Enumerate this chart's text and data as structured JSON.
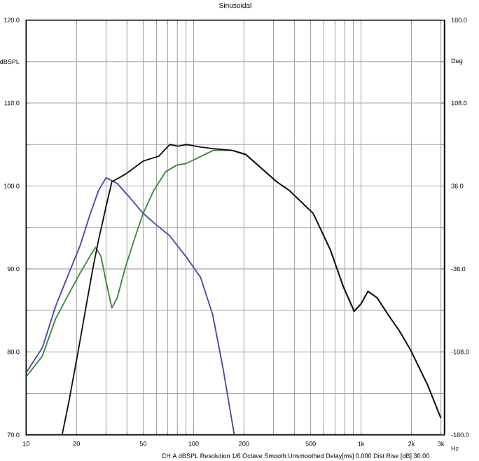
{
  "chart_data": {
    "type": "line",
    "title": "Sinusoidal",
    "xlabel": "Hz",
    "log": "x",
    "grid": true,
    "xlim": [
      10,
      3150
    ],
    "ylim": [
      70,
      120
    ],
    "y2lim": [
      -180,
      180
    ],
    "xticks": [
      {
        "value": 10,
        "label": "10"
      },
      {
        "value": 20,
        "label": "20"
      },
      {
        "value": 30,
        "label": null
      },
      {
        "value": 40,
        "label": null
      },
      {
        "value": 50,
        "label": "50"
      },
      {
        "value": 60,
        "label": null
      },
      {
        "value": 70,
        "label": null
      },
      {
        "value": 80,
        "label": null
      },
      {
        "value": 90,
        "label": null
      },
      {
        "value": 100,
        "label": "100"
      },
      {
        "value": 200,
        "label": "200"
      },
      {
        "value": 300,
        "label": null
      },
      {
        "value": 400,
        "label": null
      },
      {
        "value": 500,
        "label": "500"
      },
      {
        "value": 600,
        "label": null
      },
      {
        "value": 700,
        "label": null
      },
      {
        "value": 800,
        "label": null
      },
      {
        "value": 900,
        "label": null
      },
      {
        "value": 1000,
        "label": "1k"
      },
      {
        "value": 2000,
        "label": "2k"
      },
      {
        "value": 3000,
        "label": "3k"
      }
    ],
    "yticks": [
      {
        "value": 70,
        "label": "70.0"
      },
      {
        "value": 75,
        "label": null
      },
      {
        "value": 80,
        "label": "80.0"
      },
      {
        "value": 85,
        "label": null
      },
      {
        "value": 90,
        "label": "90.0"
      },
      {
        "value": 95,
        "label": null
      },
      {
        "value": 100,
        "label": "100.0"
      },
      {
        "value": 105,
        "label": null
      },
      {
        "value": 110,
        "label": "110.0"
      },
      {
        "value": 115,
        "label": "dBSPL"
      },
      {
        "value": 120,
        "label": "120.0"
      }
    ],
    "y2ticks": [
      {
        "value": -180,
        "label": "-180.0"
      },
      {
        "value": -108,
        "label": "-108.0"
      },
      {
        "value": -36,
        "label": "-36.0"
      },
      {
        "value": 36,
        "label": "36.0"
      },
      {
        "value": 108,
        "label": "108.0"
      },
      {
        "value": 144,
        "label": "Deg"
      },
      {
        "value": 180,
        "label": "180.0"
      }
    ],
    "series": [
      {
        "color": "#4a4aa8",
        "x": [
          10,
          12.5,
          15,
          18,
          21,
          24,
          27,
          30,
          35,
          42,
          50,
          60,
          72,
          90,
          110,
          130,
          150,
          175
        ],
        "values": [
          77.5,
          80.5,
          85.5,
          89.5,
          92.8,
          96.5,
          99.4,
          101,
          100.3,
          98.5,
          96.7,
          95.3,
          94,
          91.5,
          89,
          84.5,
          78,
          70
        ]
      },
      {
        "color": "#3a8a3a",
        "x": [
          10,
          12.5,
          15,
          18,
          21,
          24,
          26,
          28,
          30,
          32.5,
          35,
          39,
          45,
          50,
          58,
          68,
          79,
          90,
          104,
          131,
          170,
          205,
          314,
          376,
          518,
          656,
          786,
          910,
          1000,
          1100,
          1250,
          1450,
          1700,
          1980,
          2500,
          3000
        ],
        "values": [
          77,
          79.5,
          84,
          87,
          89.5,
          91.5,
          92.6,
          91.5,
          88.5,
          85.3,
          86.5,
          90.1,
          94,
          96.7,
          99.5,
          101.7,
          102.5,
          102.7,
          103.3,
          104.3,
          104.3,
          103.8,
          100.5,
          99.4,
          96.7,
          92.3,
          87.8,
          84.9,
          85.8,
          87.3,
          86.5,
          84.5,
          82.5,
          80.2,
          76,
          72
        ]
      },
      {
        "color": "#111111",
        "x": [
          16.4,
          18,
          20.5,
          22.9,
          25,
          27,
          30,
          32.5,
          39,
          50,
          62,
          72,
          81,
          91,
          110,
          131,
          170,
          205,
          314,
          376,
          518,
          656,
          786,
          910,
          1000,
          1100,
          1250,
          1450,
          1700,
          1980,
          2500,
          3000
        ],
        "values": [
          70,
          74,
          80.2,
          85.7,
          90,
          93.4,
          97.5,
          100.5,
          101.4,
          103,
          103.6,
          105,
          104.8,
          105,
          104.7,
          104.5,
          104.3,
          103.8,
          100.5,
          99.4,
          96.7,
          92.3,
          87.8,
          84.9,
          85.8,
          87.3,
          86.5,
          84.5,
          82.5,
          80.2,
          76,
          72
        ]
      }
    ],
    "annotations": [
      "CH A dBSPL Resolution 1/6 Octave Smooth:Unsmoothed Delay[ms] 0.000 Dist Rise [dB] 30.00"
    ]
  }
}
